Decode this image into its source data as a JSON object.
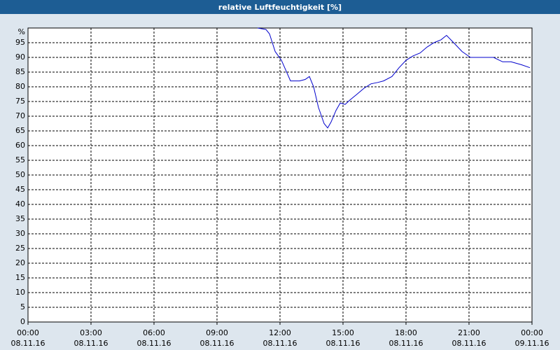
{
  "chart_data": {
    "type": "line",
    "title": "relative Luftfeuchtigkeit [%]",
    "x": [
      10.93,
      11.33,
      11.5,
      11.77,
      12.07,
      12.5,
      12.93,
      13.2,
      13.4,
      13.6,
      13.83,
      14.1,
      14.27,
      14.43,
      14.67,
      14.87,
      15.1,
      15.33,
      15.67,
      16,
      16.33,
      16.67,
      16.93,
      17.33,
      17.67,
      18,
      18.33,
      18.67,
      19,
      19.33,
      19.67,
      19.93,
      20.27,
      20.67,
      21.07,
      21.5,
      22.17,
      22.6,
      23,
      23.5,
      23.9
    ],
    "series": [
      {
        "name": "relative Luftfeuchtigkeit",
        "color": "#0000cc",
        "values": [
          100,
          99.5,
          98,
          92,
          89,
          82,
          82,
          82.5,
          83.5,
          80,
          73,
          67.5,
          66,
          68,
          72,
          74.5,
          74,
          75.5,
          77.5,
          79.5,
          81,
          81.5,
          82,
          83.5,
          86.5,
          89,
          90.5,
          91.5,
          93.5,
          95,
          96,
          97.5,
          95,
          92,
          90,
          90,
          90,
          88.5,
          88.5,
          87.5,
          86.5
        ]
      }
    ],
    "xlim": [
      0,
      24
    ],
    "xticks": [
      {
        "value": 0,
        "label": "00:00",
        "date": "08.11.16"
      },
      {
        "value": 3,
        "label": "03:00",
        "date": "08.11.16"
      },
      {
        "value": 6,
        "label": "06:00",
        "date": "08.11.16"
      },
      {
        "value": 9,
        "label": "09:00",
        "date": "08.11.16"
      },
      {
        "value": 12,
        "label": "12:00",
        "date": "08.11.16"
      },
      {
        "value": 15,
        "label": "15:00",
        "date": "08.11.16"
      },
      {
        "value": 18,
        "label": "18:00",
        "date": "08.11.16"
      },
      {
        "value": 21,
        "label": "21:00",
        "date": "08.11.16"
      },
      {
        "value": 24,
        "label": "00:00",
        "date": "09.11.16"
      }
    ],
    "ylim": [
      0,
      100
    ],
    "yticks": [
      0,
      5,
      10,
      15,
      20,
      25,
      30,
      35,
      40,
      45,
      50,
      55,
      60,
      65,
      70,
      75,
      80,
      85,
      90,
      95,
      {
        "value": 100,
        "label": "%"
      }
    ],
    "grid": true
  }
}
